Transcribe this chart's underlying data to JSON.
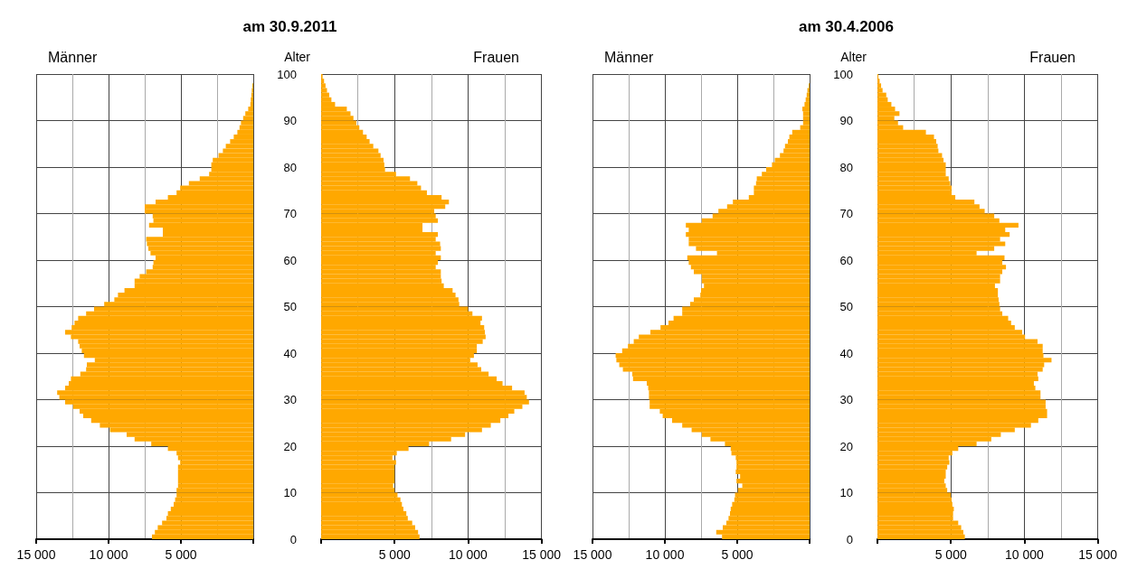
{
  "chart_data": [
    {
      "type": "bar",
      "orientation": "horizontal",
      "title": "am 30.9.2011",
      "grid": true,
      "tick_labels": "x",
      "x": [
        0,
        1,
        2,
        3,
        4,
        5,
        6,
        7,
        8,
        9,
        10,
        11,
        12,
        13,
        14,
        15,
        16,
        17,
        18,
        19,
        20,
        21,
        22,
        23,
        24,
        25,
        26,
        27,
        28,
        29,
        30,
        31,
        32,
        33,
        34,
        35,
        36,
        37,
        38,
        39,
        40,
        41,
        42,
        43,
        44,
        45,
        46,
        47,
        48,
        49,
        50,
        51,
        52,
        53,
        54,
        55,
        56,
        57,
        58,
        59,
        60,
        61,
        62,
        63,
        64,
        65,
        66,
        67,
        68,
        69,
        70,
        71,
        72,
        73,
        74,
        75,
        76,
        77,
        78,
        79,
        80,
        81,
        82,
        83,
        84,
        85,
        86,
        87,
        88,
        89,
        90,
        91,
        92,
        93,
        94,
        95,
        96,
        97
      ],
      "xlim": [
        15000,
        0
      ],
      "xticks": [
        {
          "value": 15000,
          "label": "15 000"
        },
        {
          "value": 10000,
          "label": "10 000"
        },
        {
          "value": 5000,
          "label": "5 000"
        },
        {
          "value": 0,
          "label": null
        }
      ],
      "ylim": [
        0,
        100
      ],
      "yticks": [
        0,
        10,
        20,
        30,
        40,
        50,
        60,
        70,
        80,
        90,
        100
      ],
      "series": [
        {
          "name": "Männer",
          "color": "#ffa800",
          "values": [
            7000,
            6800,
            6600,
            6300,
            6000,
            5900,
            5700,
            5500,
            5400,
            5300,
            5300,
            5200,
            5200,
            5200,
            5200,
            5200,
            5050,
            5200,
            5300,
            5900,
            7050,
            8200,
            8750,
            9900,
            10600,
            11200,
            11750,
            12000,
            12450,
            13000,
            13400,
            13550,
            13000,
            12750,
            12600,
            11950,
            11550,
            11500,
            10950,
            11700,
            11850,
            12000,
            12100,
            12600,
            13000,
            12550,
            12350,
            12100,
            11550,
            11000,
            10300,
            9600,
            9350,
            8900,
            8200,
            8200,
            7850,
            7400,
            6950,
            6900,
            6750,
            7100,
            7250,
            7350,
            7400,
            6250,
            6250,
            7200,
            6900,
            6950,
            7500,
            7500,
            6750,
            5900,
            5300,
            5050,
            4450,
            3700,
            3050,
            2900,
            2900,
            2800,
            2400,
            2100,
            1900,
            1600,
            1350,
            1100,
            950,
            850,
            700,
            550,
            350,
            200,
            170,
            130,
            100,
            60
          ]
        }
      ]
    },
    {
      "type": "bar",
      "orientation": "horizontal",
      "ylabel": "Alter",
      "grid": true,
      "x": [
        0,
        1,
        2,
        3,
        4,
        5,
        6,
        7,
        8,
        9,
        10,
        11,
        12,
        13,
        14,
        15,
        16,
        17,
        18,
        19,
        20,
        21,
        22,
        23,
        24,
        25,
        26,
        27,
        28,
        29,
        30,
        31,
        32,
        33,
        34,
        35,
        36,
        37,
        38,
        39,
        40,
        41,
        42,
        43,
        44,
        45,
        46,
        47,
        48,
        49,
        50,
        51,
        52,
        53,
        54,
        55,
        56,
        57,
        58,
        59,
        60,
        61,
        62,
        63,
        64,
        65,
        66,
        67,
        68,
        69,
        70,
        71,
        72,
        73,
        74,
        75,
        76,
        77,
        78,
        79,
        80,
        81,
        82,
        83,
        84,
        85,
        86,
        87,
        88,
        89,
        90,
        91,
        92,
        93,
        94,
        95,
        96,
        97,
        98,
        99
      ],
      "xlim": [
        0,
        15000
      ],
      "xticks": [
        {
          "value": 0,
          "label": null
        },
        {
          "value": 5000,
          "label": "5 000"
        },
        {
          "value": 10000,
          "label": "10 000"
        },
        {
          "value": 15000,
          "label": "15 000"
        }
      ],
      "ylim": [
        0,
        100
      ],
      "yticks": [
        0,
        10,
        20,
        30,
        40,
        50,
        60,
        70,
        80,
        90,
        100
      ],
      "series": [
        {
          "name": "Frauen",
          "color": "#ffa800",
          "values": [
            6700,
            6600,
            6400,
            6200,
            5900,
            5800,
            5600,
            5500,
            5400,
            5200,
            5000,
            4900,
            5000,
            5000,
            5000,
            5000,
            5100,
            4850,
            5150,
            5950,
            7350,
            8850,
            9800,
            10950,
            11550,
            12200,
            12750,
            13150,
            13700,
            14150,
            14000,
            13850,
            13000,
            12350,
            11950,
            11400,
            10900,
            10650,
            10150,
            10400,
            10600,
            10600,
            11000,
            11200,
            11150,
            11100,
            10850,
            10950,
            10300,
            10000,
            9400,
            9350,
            9150,
            8950,
            8350,
            8200,
            8150,
            8150,
            7800,
            7950,
            8150,
            7800,
            8150,
            8100,
            7800,
            7950,
            6900,
            6900,
            7950,
            7800,
            7700,
            8450,
            8700,
            8200,
            7200,
            6800,
            6550,
            6050,
            5100,
            4350,
            4300,
            4250,
            4050,
            3900,
            3550,
            3300,
            3100,
            2850,
            2600,
            2400,
            2200,
            2000,
            1750,
            950,
            700,
            550,
            400,
            300,
            200,
            100
          ]
        }
      ]
    },
    {
      "type": "bar",
      "orientation": "horizontal",
      "title": "am 30.4.2006",
      "grid": true,
      "tick_labels": "x",
      "x": [
        0,
        1,
        2,
        3,
        4,
        5,
        6,
        7,
        8,
        9,
        10,
        11,
        12,
        13,
        14,
        15,
        16,
        17,
        18,
        19,
        20,
        21,
        22,
        23,
        24,
        25,
        26,
        27,
        28,
        29,
        30,
        31,
        32,
        33,
        34,
        35,
        36,
        37,
        38,
        39,
        40,
        41,
        42,
        43,
        44,
        45,
        46,
        47,
        48,
        49,
        50,
        51,
        52,
        53,
        54,
        55,
        56,
        57,
        58,
        59,
        60,
        61,
        62,
        63,
        64,
        65,
        66,
        67,
        68,
        69,
        70,
        71,
        72,
        73,
        74,
        75,
        76,
        77,
        78,
        79,
        80,
        81,
        82,
        83,
        84,
        85,
        86,
        87,
        88,
        89,
        90,
        91,
        92,
        93,
        94,
        95,
        96,
        97
      ],
      "xlim": [
        15000,
        0
      ],
      "xticks": [
        {
          "value": 15000,
          "label": "15 000"
        },
        {
          "value": 10000,
          "label": "10 000"
        },
        {
          "value": 5000,
          "label": "5 000"
        },
        {
          "value": 0,
          "label": null
        }
      ],
      "ylim": [
        0,
        100
      ],
      "yticks": [
        0,
        10,
        20,
        30,
        40,
        50,
        60,
        70,
        80,
        90,
        100
      ],
      "series": [
        {
          "name": "Männer",
          "color": "#ffa800",
          "values": [
            6050,
            6450,
            6000,
            5750,
            5600,
            5500,
            5450,
            5350,
            5200,
            5150,
            4950,
            4650,
            5050,
            4800,
            5100,
            5050,
            5050,
            5100,
            5400,
            5450,
            5850,
            6850,
            7450,
            8150,
            8800,
            9500,
            10150,
            10350,
            11050,
            11050,
            11100,
            11100,
            11150,
            11250,
            12200,
            12250,
            12900,
            13150,
            13350,
            13400,
            12950,
            12550,
            12150,
            11800,
            11000,
            10300,
            9750,
            9400,
            8800,
            8800,
            8250,
            8000,
            7550,
            7500,
            7300,
            7450,
            7450,
            8000,
            8200,
            8350,
            8450,
            6400,
            7850,
            8350,
            8350,
            8550,
            8350,
            8550,
            7450,
            6700,
            6300,
            5700,
            5300,
            4200,
            3850,
            3850,
            3700,
            3650,
            3300,
            3000,
            2600,
            2400,
            2050,
            1800,
            1700,
            1500,
            1400,
            1200,
            650,
            450,
            450,
            450,
            500,
            350,
            270,
            200,
            150,
            60
          ]
        }
      ]
    },
    {
      "type": "bar",
      "orientation": "horizontal",
      "ylabel": "Alter",
      "grid": true,
      "x": [
        0,
        1,
        2,
        3,
        4,
        5,
        6,
        7,
        8,
        9,
        10,
        11,
        12,
        13,
        14,
        15,
        16,
        17,
        18,
        19,
        20,
        21,
        22,
        23,
        24,
        25,
        26,
        27,
        28,
        29,
        30,
        31,
        32,
        33,
        34,
        35,
        36,
        37,
        38,
        39,
        40,
        41,
        42,
        43,
        44,
        45,
        46,
        47,
        48,
        49,
        50,
        51,
        52,
        53,
        54,
        55,
        56,
        57,
        58,
        59,
        60,
        61,
        62,
        63,
        64,
        65,
        66,
        67,
        68,
        69,
        70,
        71,
        72,
        73,
        74,
        75,
        76,
        77,
        78,
        79,
        80,
        81,
        82,
        83,
        84,
        85,
        86,
        87,
        88,
        89,
        90,
        91,
        92,
        93,
        94,
        95,
        96,
        97,
        98,
        99
      ],
      "xlim": [
        0,
        15000
      ],
      "xticks": [
        {
          "value": 0,
          "label": null
        },
        {
          "value": 5000,
          "label": "5 000"
        },
        {
          "value": 10000,
          "label": "10 000"
        },
        {
          "value": 15000,
          "label": "15 000"
        }
      ],
      "ylim": [
        0,
        100
      ],
      "yticks": [
        0,
        10,
        20,
        30,
        40,
        50,
        60,
        70,
        80,
        90,
        100
      ],
      "series": [
        {
          "name": "Frauen",
          "color": "#ffa800",
          "values": [
            5950,
            5850,
            5700,
            5500,
            5150,
            5150,
            5200,
            5100,
            5050,
            5000,
            4750,
            4650,
            4550,
            4650,
            4650,
            4750,
            4900,
            4850,
            5100,
            5500,
            6750,
            7750,
            8400,
            9350,
            10450,
            10950,
            11550,
            11550,
            11450,
            11450,
            11100,
            11100,
            10750,
            10650,
            10950,
            10900,
            11250,
            11350,
            11850,
            11300,
            11250,
            11250,
            10900,
            10050,
            9850,
            9350,
            9100,
            8900,
            8500,
            8350,
            8300,
            8250,
            8200,
            8200,
            8000,
            8350,
            8350,
            8500,
            8750,
            8500,
            8650,
            6750,
            7950,
            8700,
            8350,
            9000,
            8700,
            9600,
            8300,
            7950,
            7300,
            6950,
            6600,
            5300,
            5050,
            5050,
            4950,
            4850,
            4650,
            4650,
            4650,
            4500,
            4400,
            4150,
            4100,
            4000,
            3850,
            3300,
            1750,
            1400,
            1150,
            1500,
            1200,
            950,
            700,
            600,
            350,
            250,
            150,
            60
          ]
        }
      ]
    }
  ]
}
